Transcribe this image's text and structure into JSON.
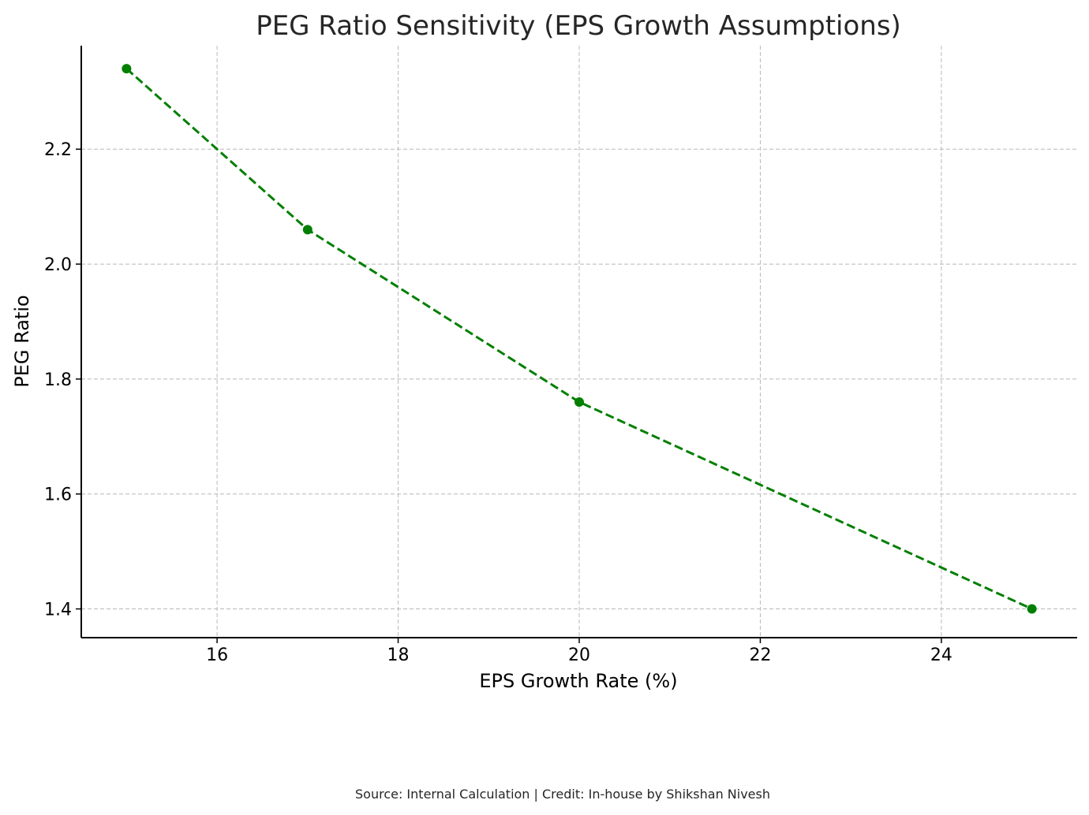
{
  "footer": {
    "source_text": "Source: Internal Calculation | Credit: In-house by Shikshan Nivesh"
  },
  "chart_data": {
    "type": "line",
    "title": "PEG Ratio Sensitivity (EPS Growth Assumptions)",
    "xlabel": "EPS Growth Rate (%)",
    "ylabel": "PEG Ratio",
    "xlim": [
      14.5,
      25.5
    ],
    "ylim": [
      1.35,
      2.38
    ],
    "xticks": [
      "16",
      "18",
      "20",
      "22",
      "24"
    ],
    "yticks": [
      "1.4",
      "1.6",
      "1.8",
      "2.0",
      "2.2"
    ],
    "grid": true,
    "line_style": "dashed",
    "marker": "circle",
    "series": [
      {
        "x": [
          15,
          17,
          20,
          25
        ],
        "y": [
          2.34,
          2.06,
          1.76,
          1.4
        ],
        "color": "#007f00"
      }
    ]
  }
}
